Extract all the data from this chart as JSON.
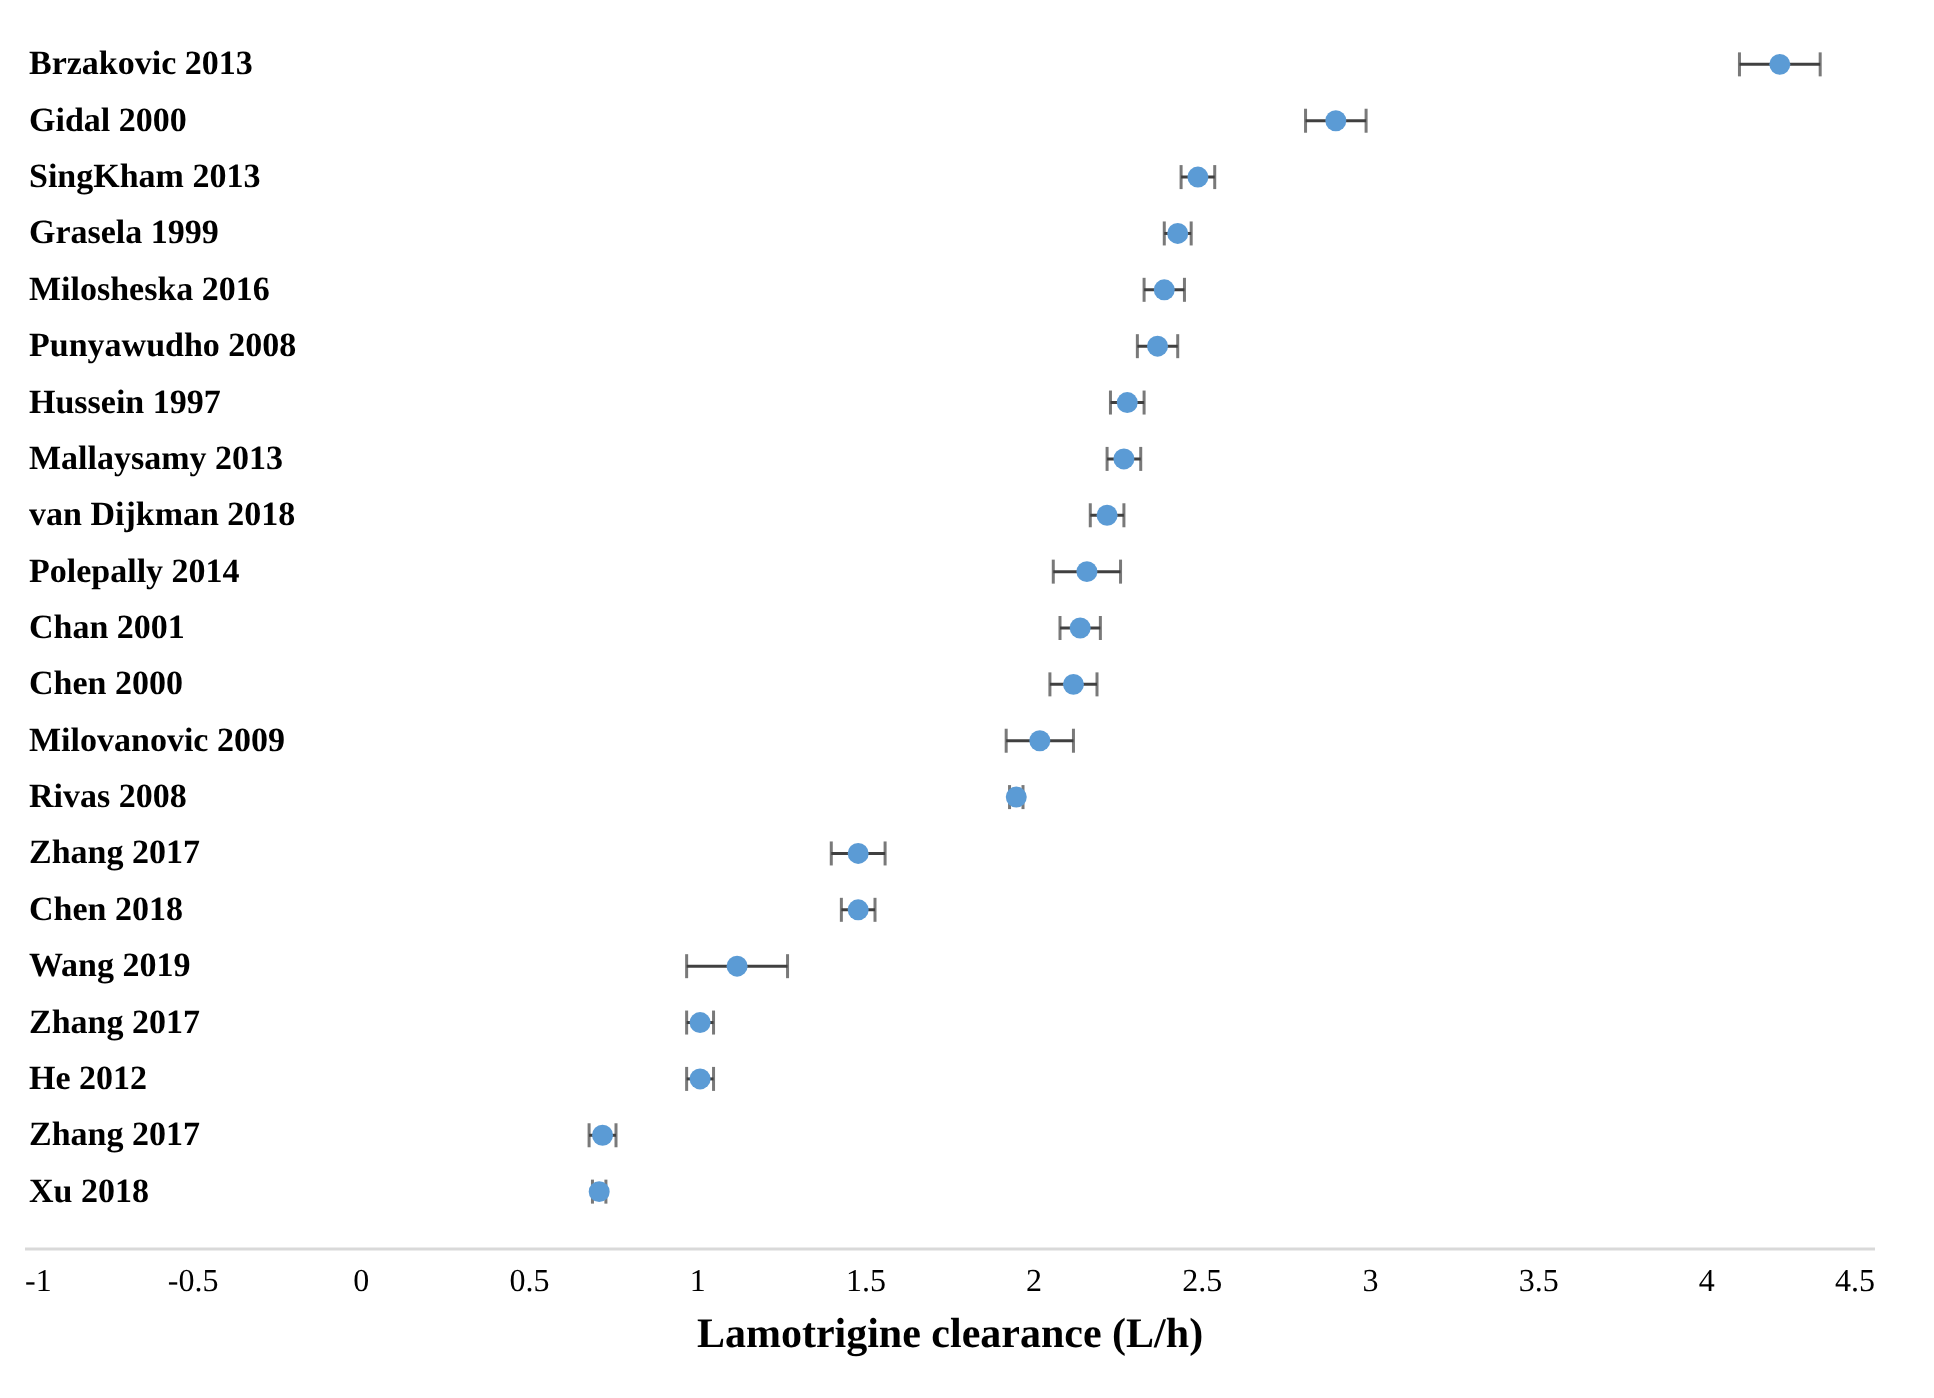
{
  "chart_data": {
    "type": "scatter",
    "orientation": "horizontal",
    "xlabel": "Lamotrigine clearance (L/h)",
    "categories": [
      "Brzakovic 2013",
      "Gidal 2000",
      "SingKham 2013",
      "Grasela 1999",
      "Milosheska 2016",
      "Punyawudho 2008",
      "Hussein 1997",
      "Mallaysamy 2013",
      "van Dijkman 2018",
      "Polepally 2014",
      "Chan 2001",
      "Chen 2000",
      "Milovanovic 2009",
      "Rivas 2008",
      "Zhang 2017",
      "Chen 2018",
      "Wang 2019",
      "Zhang 2017",
      "He 2012",
      "Zhang 2017",
      "Xu 2018"
    ],
    "series": [
      {
        "color": "#5b9bd5",
        "values": [
          4.22,
          2.9,
          2.49,
          2.43,
          2.39,
          2.37,
          2.28,
          2.27,
          2.22,
          2.16,
          2.14,
          2.12,
          2.02,
          1.95,
          1.48,
          1.48,
          1.12,
          1.01,
          1.01,
          0.72,
          0.71
        ],
        "errors": [
          0.12,
          0.09,
          0.05,
          0.04,
          0.06,
          0.06,
          0.05,
          0.05,
          0.05,
          0.1,
          0.06,
          0.07,
          0.1,
          0.02,
          0.08,
          0.05,
          0.15,
          0.04,
          0.04,
          0.04,
          0.02
        ]
      }
    ],
    "xlim": [
      -1,
      4.5
    ],
    "xticks": [
      -1,
      -0.5,
      0,
      0.5,
      1,
      1.5,
      2,
      2.5,
      3,
      3.5,
      4,
      4.5
    ],
    "marker": "circle",
    "grid": false
  }
}
